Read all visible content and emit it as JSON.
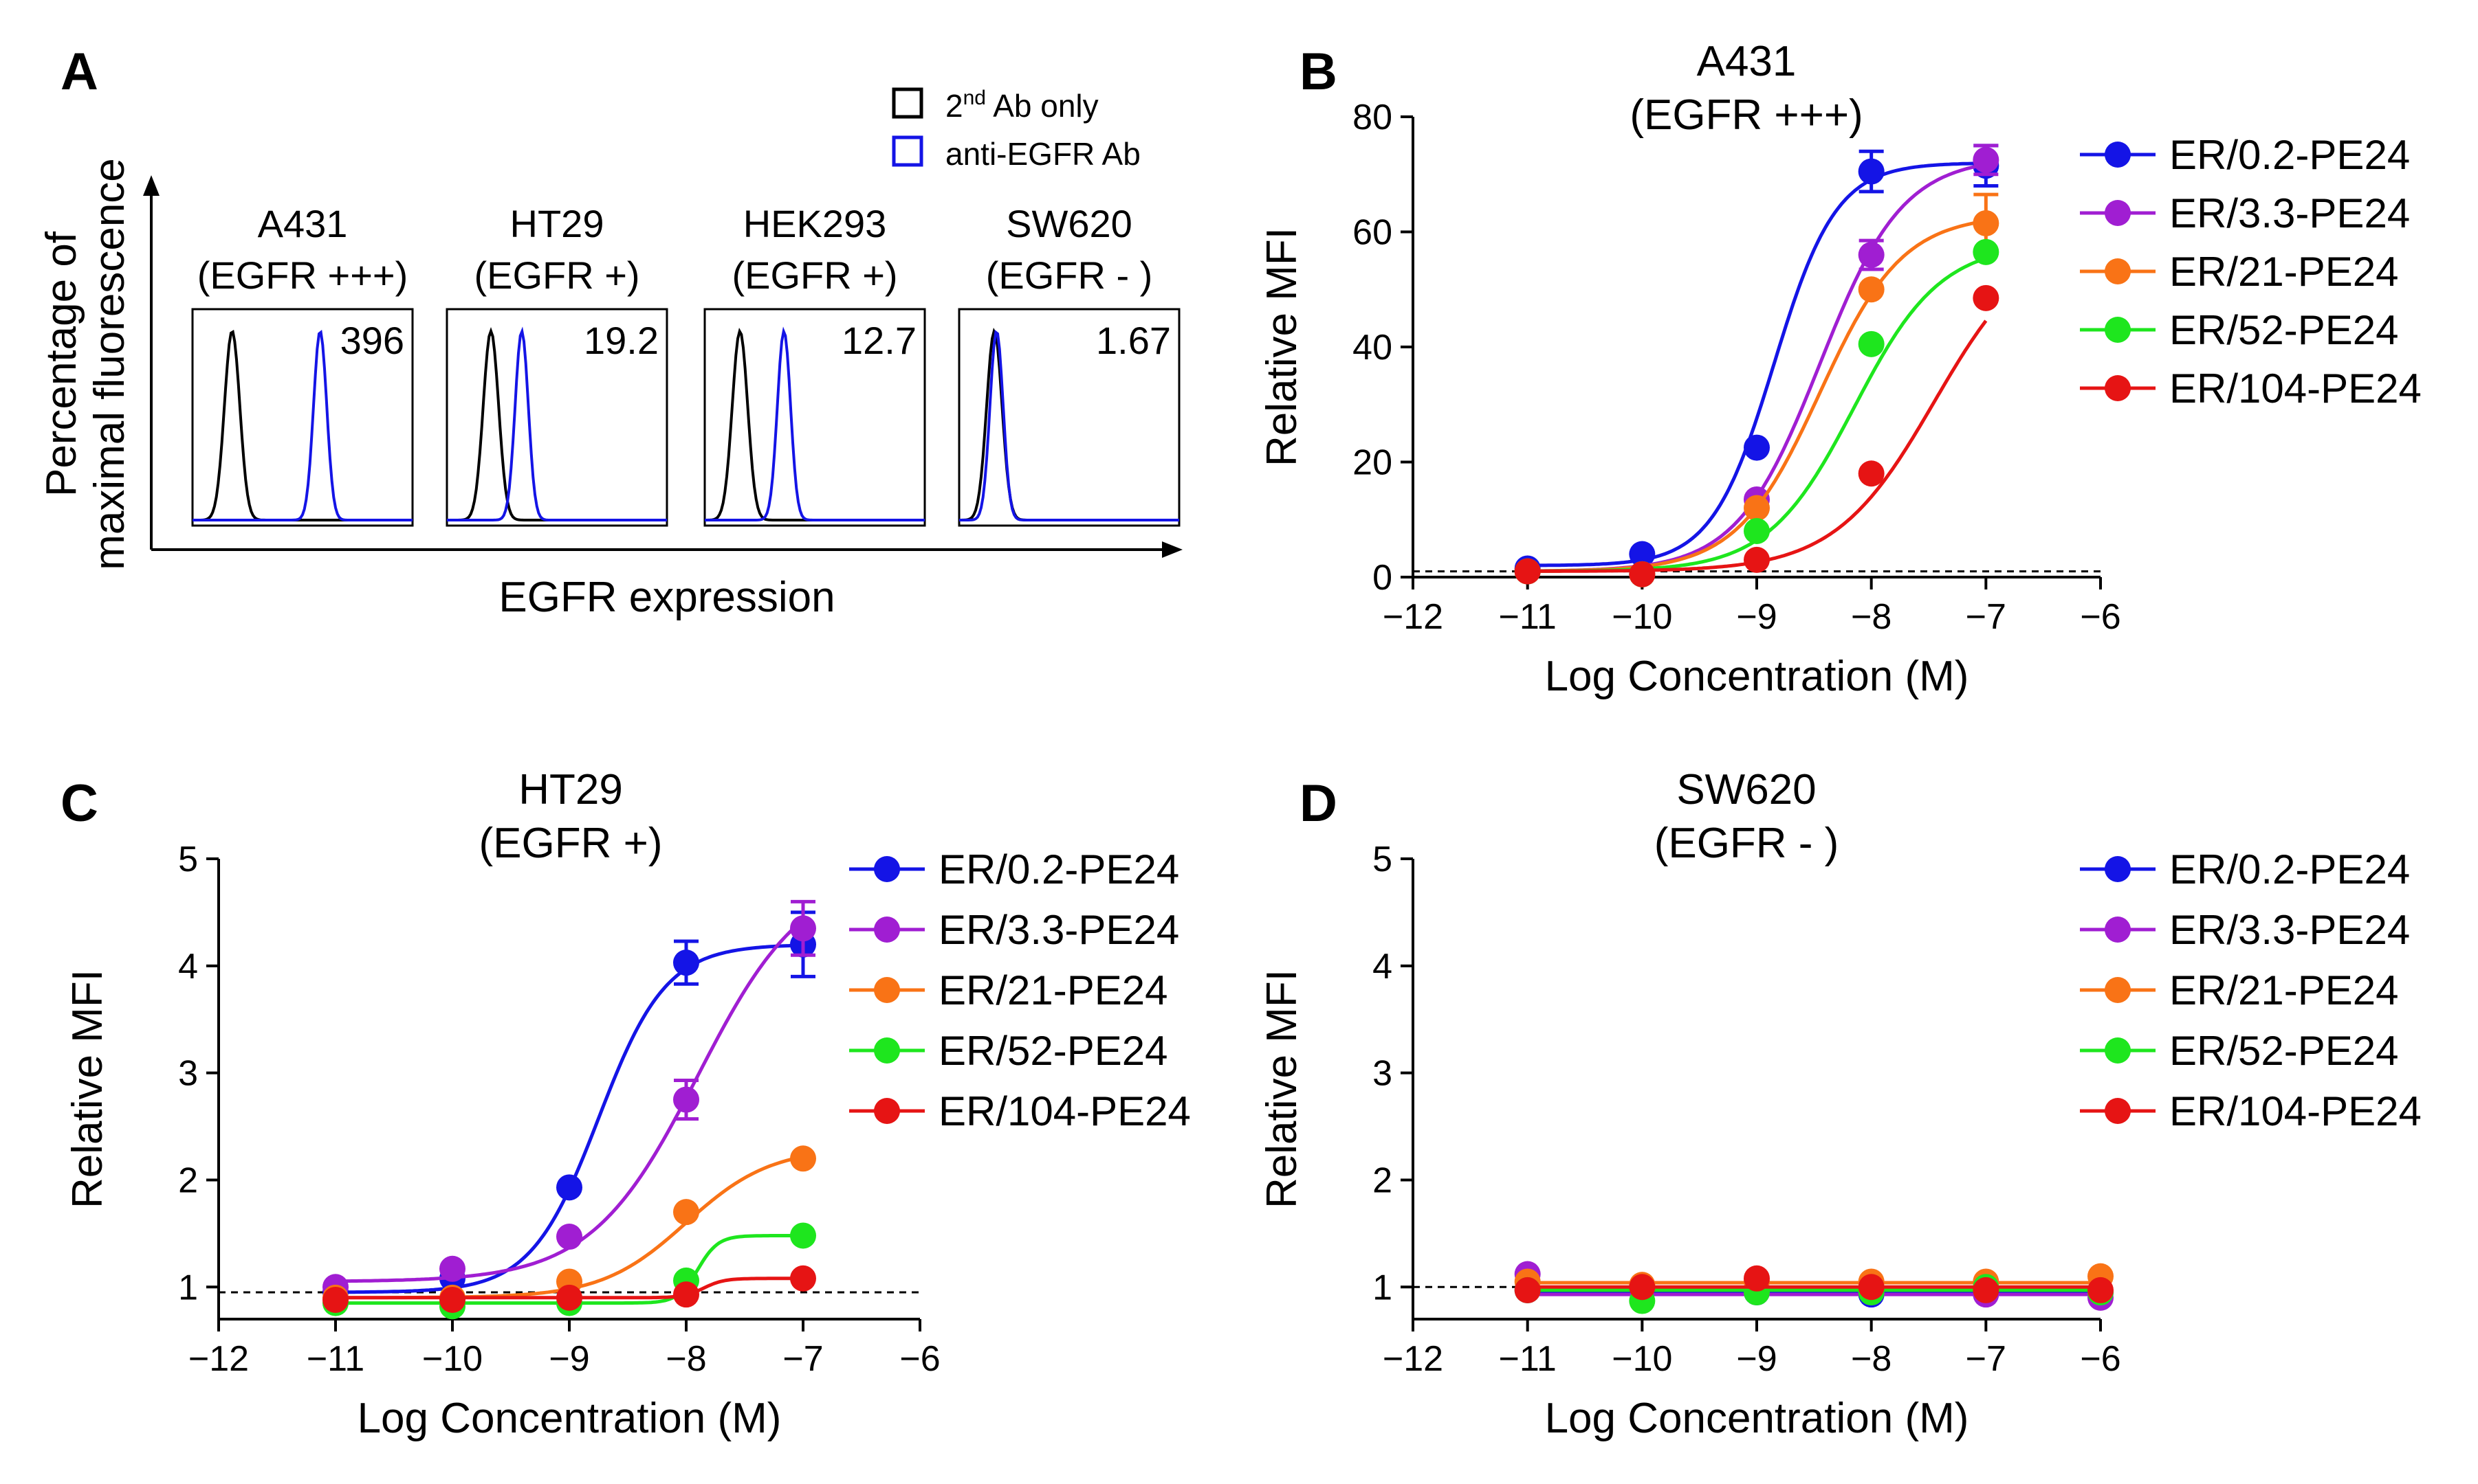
{
  "panel_letters": [
    "A",
    "B",
    "C",
    "D"
  ],
  "series_colors": {
    "ER/0.2-PE24": "#1414e6",
    "ER/3.3-PE24": "#a01ed2",
    "ER/21-PE24": "#f97316",
    "ER/52-PE24": "#1ee61e",
    "ER/104-PE24": "#e61414"
  },
  "chart_data": [
    {
      "type": "histogram",
      "panel": "A",
      "ylabel_line1": "Percentage of",
      "ylabel_line2": "maximal fluorescence",
      "xlabel": "EGFR expression",
      "legend": [
        {
          "label": "2nd Ab only",
          "base": "2",
          "sup": "nd",
          "rest": " Ab only",
          "color": "#000000"
        },
        {
          "label": "anti-EGFR Ab",
          "color": "#1414e6"
        }
      ],
      "cells": [
        {
          "name": "A431",
          "status": "(EGFR +++)",
          "value": "396",
          "control_peak": 0.18,
          "antibody_peak": 0.58
        },
        {
          "name": "HT29",
          "status": "(EGFR +)",
          "value": "19.2",
          "control_peak": 0.2,
          "antibody_peak": 0.34
        },
        {
          "name": "HEK293",
          "status": "(EGFR +)",
          "value": "12.7",
          "control_peak": 0.16,
          "antibody_peak": 0.36
        },
        {
          "name": "SW620",
          "status": "(EGFR  - )",
          "value": "1.67",
          "control_peak": 0.16,
          "antibody_peak": 0.17
        }
      ]
    },
    {
      "type": "line",
      "panel": "B",
      "title_line1": "A431",
      "title_line2": "(EGFR +++)",
      "xlabel": "Log Concentration (M)",
      "ylabel": "Relative MFI",
      "xlim": [
        -12,
        -6
      ],
      "ylim": [
        0,
        80
      ],
      "xticks": [
        -12,
        -11,
        -10,
        -9,
        -8,
        -7,
        -6
      ],
      "xtick_labels": [
        "−12",
        "−11",
        "−10",
        "−9",
        "−8",
        "−7",
        "−6"
      ],
      "yticks": [
        0,
        20,
        40,
        60,
        80
      ],
      "ytick_labels": [
        "0",
        "20",
        "40",
        "60",
        "80"
      ],
      "baseline": 1,
      "x": [
        -11,
        -10,
        -9,
        -8,
        -7
      ],
      "series": [
        {
          "name": "ER/0.2-PE24",
          "values": [
            1.5,
            4.0,
            22.5,
            70.5,
            71.5
          ],
          "errors": [
            0,
            0,
            0,
            3.5,
            3.5
          ],
          "fit": {
            "bottom": 2,
            "top": 72,
            "logec50": -8.85,
            "hill": 1.6
          }
        },
        {
          "name": "ER/3.3-PE24",
          "values": [
            1.0,
            0.5,
            13.5,
            56.0,
            72.5
          ],
          "errors": [
            0,
            0,
            0,
            2.5,
            2.5
          ],
          "fit": {
            "bottom": 1,
            "top": 73,
            "logec50": -8.45,
            "hill": 1.2
          }
        },
        {
          "name": "ER/21-PE24",
          "values": [
            1.0,
            0.5,
            12.0,
            50.0,
            61.5
          ],
          "errors": [
            0,
            0,
            0,
            0,
            5.0
          ],
          "fit": {
            "bottom": 1,
            "top": 63,
            "logec50": -8.45,
            "hill": 1.2
          }
        },
        {
          "name": "ER/52-PE24",
          "values": [
            1.0,
            0.5,
            8.0,
            40.5,
            56.5
          ],
          "errors": [
            0,
            0,
            0,
            0,
            0
          ],
          "fit": {
            "bottom": 1,
            "top": 58,
            "logec50": -8.15,
            "hill": 1.15
          }
        },
        {
          "name": "ER/104-PE24",
          "values": [
            1.0,
            0.5,
            3.0,
            18.0,
            48.5
          ],
          "errors": [
            0,
            0,
            0,
            0,
            0
          ],
          "fit": {
            "bottom": 1,
            "top": 60,
            "logec50": -7.45,
            "hill": 1.0
          }
        }
      ]
    },
    {
      "type": "line",
      "panel": "C",
      "title_line1": "HT29",
      "title_line2": "(EGFR +)",
      "xlabel": "Log Concentration (M)",
      "ylabel": "Relative MFI",
      "xlim": [
        -12,
        -6
      ],
      "ylim": [
        0.7,
        5
      ],
      "xticks": [
        -12,
        -11,
        -10,
        -9,
        -8,
        -7,
        -6
      ],
      "xtick_labels": [
        "−12",
        "−11",
        "−10",
        "−9",
        "−8",
        "−7",
        "−6"
      ],
      "yticks": [
        1,
        2,
        3,
        4,
        5
      ],
      "ytick_labels": [
        "1",
        "2",
        "3",
        "4",
        "5"
      ],
      "baseline": 0.95,
      "x": [
        -11,
        -10,
        -9,
        -8,
        -7
      ],
      "series": [
        {
          "name": "ER/0.2-PE24",
          "values": [
            0.95,
            1.08,
            1.93,
            4.03,
            4.2
          ],
          "errors": [
            0,
            0,
            0,
            0.2,
            0.3
          ],
          "fit": {
            "bottom": 0.95,
            "top": 4.2,
            "logec50": -8.75,
            "hill": 1.5
          }
        },
        {
          "name": "ER/3.3-PE24",
          "values": [
            1.0,
            1.17,
            1.47,
            2.75,
            4.35
          ],
          "errors": [
            0,
            0,
            0,
            0.18,
            0.25
          ],
          "fit": {
            "bottom": 1.05,
            "top": 4.9,
            "logec50": -7.9,
            "hill": 0.95
          }
        },
        {
          "name": "ER/21-PE24",
          "values": [
            0.9,
            0.9,
            1.05,
            1.7,
            2.2
          ],
          "errors": [
            0,
            0,
            0,
            0,
            0
          ],
          "fit": {
            "bottom": 0.9,
            "top": 2.3,
            "logec50": -8.0,
            "hill": 1.2
          }
        },
        {
          "name": "ER/52-PE24",
          "values": [
            0.85,
            0.82,
            0.85,
            1.06,
            1.48
          ],
          "errors": [
            0,
            0,
            0,
            0,
            0
          ],
          "fit": {
            "bottom": 0.85,
            "top": 1.48,
            "logec50": -7.9,
            "hill": 5
          }
        },
        {
          "name": "ER/104-PE24",
          "values": [
            0.88,
            0.88,
            0.9,
            0.93,
            1.08
          ],
          "errors": [
            0,
            0,
            0,
            0,
            0
          ],
          "fit": {
            "bottom": 0.9,
            "top": 1.08,
            "logec50": -7.85,
            "hill": 5
          }
        }
      ]
    },
    {
      "type": "line",
      "panel": "D",
      "title_line1": "SW620",
      "title_line2": "(EGFR  - )",
      "xlabel": "Log Concentration (M)",
      "ylabel": "Relative MFI",
      "xlim": [
        -12,
        -6
      ],
      "ylim": [
        0.7,
        5
      ],
      "xticks": [
        -12,
        -11,
        -10,
        -9,
        -8,
        -7,
        -6
      ],
      "xtick_labels": [
        "−12",
        "−11",
        "−10",
        "−9",
        "−8",
        "−7",
        "−6"
      ],
      "yticks": [
        1,
        2,
        3,
        4,
        5
      ],
      "ytick_labels": [
        "1",
        "2",
        "3",
        "4",
        "5"
      ],
      "baseline": 1,
      "x": [
        -11,
        -10,
        -9,
        -8,
        -7,
        -6
      ],
      "series": [
        {
          "name": "ER/0.2-PE24",
          "values": [
            0.97,
            0.97,
            0.95,
            0.93,
            0.97,
            0.95
          ],
          "errors": [
            0,
            0,
            0,
            0,
            0,
            0
          ],
          "flat": 0.95
        },
        {
          "name": "ER/3.3-PE24",
          "values": [
            1.12,
            1.0,
            0.97,
            0.95,
            0.93,
            0.9
          ],
          "errors": [
            0,
            0,
            0,
            0,
            0,
            0
          ],
          "flat": 0.93
        },
        {
          "name": "ER/21-PE24",
          "values": [
            1.05,
            1.02,
            1.05,
            1.05,
            1.05,
            1.1
          ],
          "errors": [
            0,
            0,
            0,
            0,
            0,
            0
          ],
          "flat": 1.04
        },
        {
          "name": "ER/52-PE24",
          "values": [
            0.97,
            0.87,
            0.95,
            0.95,
            1.0,
            0.95
          ],
          "errors": [
            0,
            0,
            0,
            0,
            0,
            0
          ],
          "flat": 0.97
        },
        {
          "name": "ER/104-PE24",
          "values": [
            0.97,
            1.0,
            1.08,
            1.0,
            0.97,
            0.97
          ],
          "errors": [
            0,
            0,
            0,
            0,
            0,
            0
          ],
          "flat": 1.0
        }
      ]
    }
  ]
}
